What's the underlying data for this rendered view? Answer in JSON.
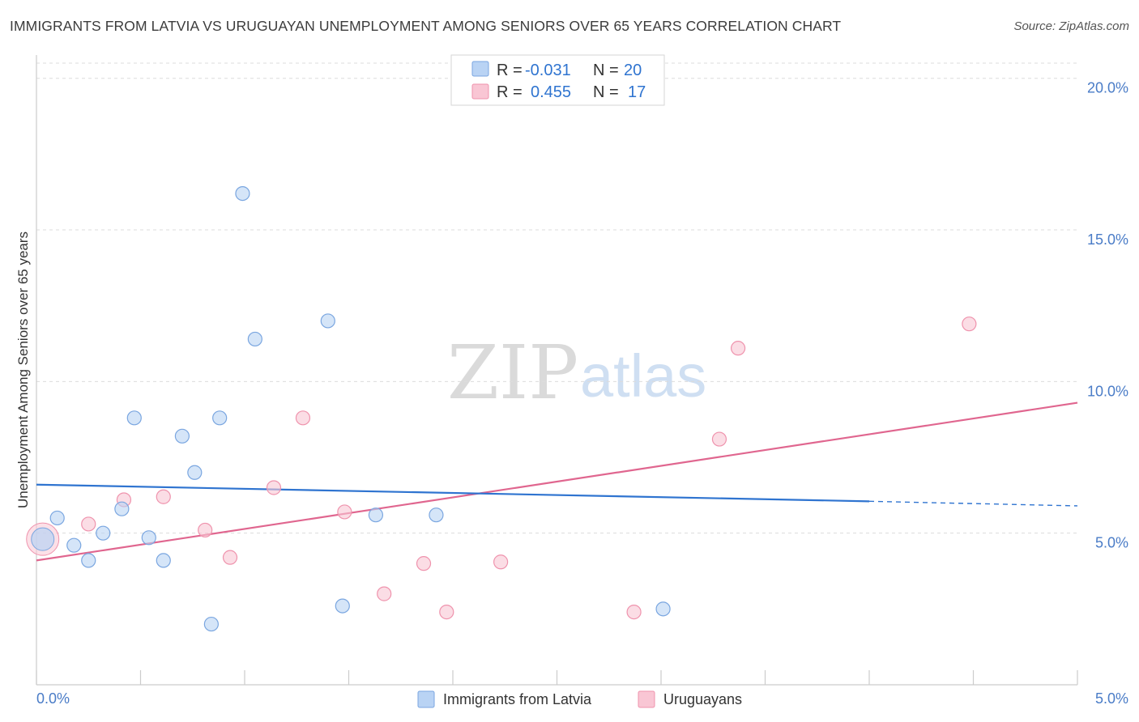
{
  "title": "IMMIGRANTS FROM LATVIA VS URUGUAYAN UNEMPLOYMENT AMONG SENIORS OVER 65 YEARS CORRELATION CHART",
  "source": "Source: ZipAtlas.com",
  "watermark": {
    "zip": "ZIP",
    "atlas": "atlas"
  },
  "colors": {
    "blue_fill": "#b9d3f4",
    "blue_stroke": "#7aa6e0",
    "blue_line": "#2f74d0",
    "pink_fill": "#f9c6d4",
    "pink_stroke": "#ef93ad",
    "pink_line": "#e0668f",
    "axis_text": "#4a7cc7"
  },
  "legend": {
    "rows": [
      {
        "r_label": "R =",
        "r_value": "-0.031",
        "n_label": "N =",
        "n_value": "20"
      },
      {
        "r_label": "R =",
        "r_value": "0.455",
        "n_label": "N =",
        "n_value": "17"
      }
    ]
  },
  "bottom_legend": [
    "Immigrants from Latvia",
    "Uruguayans"
  ],
  "chart_data": {
    "type": "scatter",
    "title": "IMMIGRANTS FROM LATVIA VS URUGUAYAN UNEMPLOYMENT AMONG SENIORS OVER 65 YEARS CORRELATION CHART",
    "xlabel": "",
    "ylabel": "Unemployment Among Seniors over 65 years",
    "xlim": [
      0,
      5
    ],
    "ylim": [
      0,
      20.5
    ],
    "x_tick_labels": [
      "0.0%",
      "5.0%"
    ],
    "y_ticks": [
      5,
      10,
      15,
      20
    ],
    "y_tick_labels": [
      "5.0%",
      "10.0%",
      "15.0%",
      "20.0%"
    ],
    "grid": "horizontal dashed",
    "legend_position": "top-center",
    "series": [
      {
        "name": "Immigrants from Latvia",
        "color": "#b9d3f4",
        "r": -0.031,
        "n": 20,
        "points": [
          [
            0.03,
            4.8
          ],
          [
            0.1,
            5.5
          ],
          [
            0.18,
            4.6
          ],
          [
            0.25,
            4.1
          ],
          [
            0.32,
            5.0
          ],
          [
            0.41,
            5.8
          ],
          [
            0.47,
            8.8
          ],
          [
            0.54,
            4.85
          ],
          [
            0.61,
            4.1
          ],
          [
            0.7,
            8.2
          ],
          [
            0.76,
            7.0
          ],
          [
            0.84,
            2.0
          ],
          [
            0.88,
            8.8
          ],
          [
            0.99,
            16.2
          ],
          [
            1.05,
            11.4
          ],
          [
            1.4,
            12.0
          ],
          [
            1.47,
            2.6
          ],
          [
            1.63,
            5.6
          ],
          [
            1.92,
            5.6
          ],
          [
            3.01,
            2.5
          ]
        ],
        "trend": {
          "x0": 0,
          "y0": 6.6,
          "x1": 4.0,
          "y1": 6.05,
          "dashed_to_x": 5.0,
          "dashed_to_y": 5.9
        }
      },
      {
        "name": "Uruguayans",
        "color": "#f9c6d4",
        "r": 0.455,
        "n": 17,
        "points": [
          [
            0.03,
            4.8
          ],
          [
            0.25,
            5.3
          ],
          [
            0.42,
            6.1
          ],
          [
            0.61,
            6.2
          ],
          [
            0.81,
            5.1
          ],
          [
            0.93,
            4.2
          ],
          [
            1.14,
            6.5
          ],
          [
            1.28,
            8.8
          ],
          [
            1.48,
            5.7
          ],
          [
            1.67,
            3.0
          ],
          [
            1.86,
            4.0
          ],
          [
            1.97,
            2.4
          ],
          [
            2.23,
            4.05
          ],
          [
            2.87,
            2.4
          ],
          [
            3.28,
            8.1
          ],
          [
            3.37,
            11.1
          ],
          [
            4.48,
            11.9
          ]
        ],
        "trend": {
          "x0": 0,
          "y0": 4.1,
          "x1": 5.0,
          "y1": 9.3
        }
      }
    ]
  }
}
